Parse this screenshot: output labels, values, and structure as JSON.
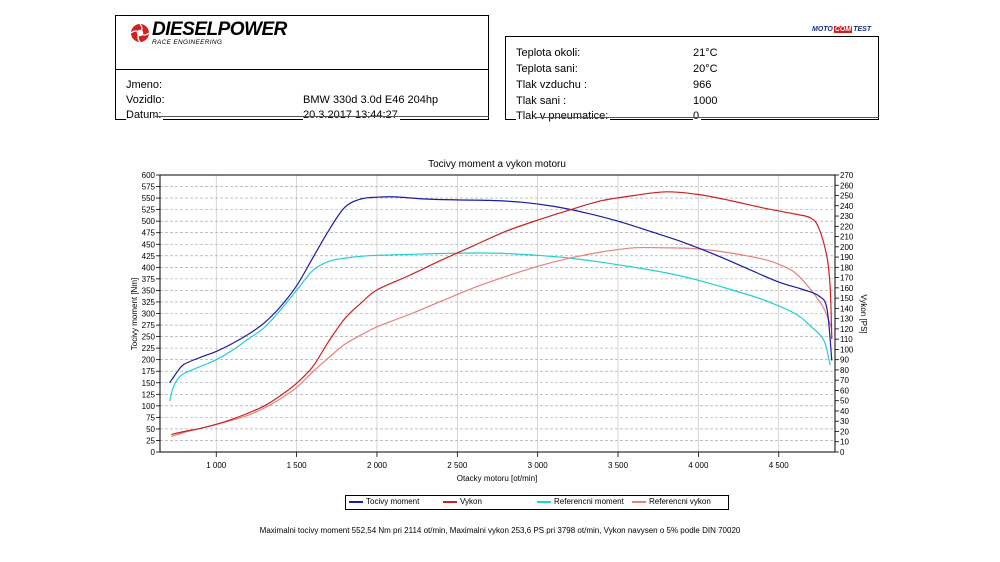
{
  "header": {
    "brand": "DIESELPOWER",
    "brand_sub": "RACE ENGINEERING",
    "moto_badge": [
      "MOTO",
      "COM",
      "TEST"
    ],
    "info": [
      {
        "label": "Jmeno:",
        "value": ""
      },
      {
        "label": "Vozidlo:",
        "value": "BMW 330d 3.0d E46 204hp"
      },
      {
        "label": "Datum:",
        "value": "20.3.2017 13:44:27"
      }
    ],
    "conditions": [
      {
        "label": "Teplota okoli:",
        "value": "21°C"
      },
      {
        "label": "Teplota sani:",
        "value": "20°C"
      },
      {
        "label": "Tlak vzduchu :",
        "value": "966"
      },
      {
        "label": "Tlak sani :",
        "value": "1000"
      },
      {
        "label": "Tlak v pneumatice:",
        "value": "0"
      }
    ]
  },
  "chart_data": {
    "type": "line",
    "title": "Tocivy moment a vykon motoru",
    "xlabel": "Otacky motoru [ot/min]",
    "ylabel_left": "Tocivy moment [Nm]",
    "ylabel_right": "Vykon [PS]",
    "xlim": [
      650,
      4850
    ],
    "ylim_left": [
      0,
      600
    ],
    "ylim_right": [
      0,
      270
    ],
    "x_ticks": [
      1000,
      1500,
      2000,
      2500,
      3000,
      3500,
      4000,
      4500
    ],
    "x_tick_labels": [
      "1 000",
      "1 500",
      "2 000",
      "2 500",
      "3 000",
      "3 500",
      "4 000",
      "4 500"
    ],
    "y_left_ticks": [
      0,
      25,
      50,
      75,
      100,
      125,
      150,
      175,
      200,
      225,
      250,
      275,
      300,
      325,
      350,
      375,
      400,
      425,
      450,
      475,
      500,
      525,
      550,
      575,
      600
    ],
    "y_right_ticks": [
      0,
      10,
      20,
      30,
      40,
      50,
      60,
      70,
      80,
      90,
      100,
      110,
      120,
      130,
      140,
      150,
      160,
      170,
      180,
      190,
      200,
      210,
      220,
      230,
      240,
      250,
      260,
      270
    ],
    "grid": true,
    "legend_position": "bottom",
    "series": [
      {
        "name": "Tocivy moment",
        "axis": "left",
        "color": "#1a1aa8",
        "x": [
          710,
          730,
          760,
          800,
          900,
          1000,
          1100,
          1200,
          1300,
          1400,
          1500,
          1600,
          1700,
          1800,
          1900,
          2000,
          2114,
          2300,
          2500,
          2700,
          2900,
          3100,
          3300,
          3500,
          3700,
          3900,
          4100,
          4300,
          4500,
          4650,
          4750,
          4800,
          4830
        ],
        "y": [
          150,
          160,
          175,
          190,
          205,
          218,
          235,
          255,
          280,
          315,
          360,
          420,
          480,
          530,
          548,
          552,
          552.5,
          548,
          546,
          545,
          541,
          532,
          518,
          500,
          478,
          455,
          428,
          398,
          368,
          352,
          338,
          310,
          198
        ]
      },
      {
        "name": "Vykon",
        "axis": "right",
        "color": "#cc2020",
        "x": [
          720,
          800,
          900,
          1000,
          1100,
          1200,
          1300,
          1400,
          1500,
          1600,
          1700,
          1800,
          1900,
          2000,
          2200,
          2400,
          2600,
          2800,
          3000,
          3200,
          3400,
          3600,
          3798,
          4000,
          4200,
          4400,
          4600,
          4700,
          4750,
          4800,
          4820,
          4830
        ],
        "y": [
          17,
          20,
          23,
          27,
          32,
          38,
          45,
          55,
          67,
          83,
          108,
          130,
          145,
          158,
          172,
          187,
          201,
          215,
          226,
          236,
          245,
          250,
          253.6,
          251,
          245,
          238,
          232,
          228,
          218,
          190,
          160,
          110
        ]
      },
      {
        "name": "Referencni moment",
        "axis": "left",
        "color": "#22d0d0",
        "x": [
          710,
          730,
          760,
          800,
          900,
          1000,
          1100,
          1200,
          1300,
          1400,
          1500,
          1600,
          1700,
          1800,
          1900,
          2000,
          2200,
          2400,
          2600,
          2800,
          3000,
          3200,
          3400,
          3600,
          3800,
          4000,
          4200,
          4400,
          4600,
          4700,
          4780,
          4820
        ],
        "y": [
          110,
          138,
          158,
          170,
          185,
          200,
          220,
          245,
          270,
          308,
          350,
          393,
          413,
          420,
          424,
          426,
          428,
          430,
          431,
          430,
          426,
          420,
          411,
          400,
          388,
          372,
          352,
          330,
          300,
          272,
          242,
          188
        ]
      },
      {
        "name": "Referencni vykon",
        "axis": "right",
        "color": "#e88080",
        "x": [
          720,
          800,
          900,
          1000,
          1100,
          1200,
          1300,
          1400,
          1500,
          1600,
          1700,
          1800,
          1900,
          2000,
          2200,
          2400,
          2600,
          2800,
          3000,
          3200,
          3400,
          3600,
          3800,
          4000,
          4200,
          4400,
          4500,
          4600,
          4700,
          4780,
          4830
        ],
        "y": [
          15,
          19,
          23,
          27,
          31,
          36,
          43,
          52,
          63,
          78,
          92,
          105,
          114,
          122,
          134,
          147,
          160,
          171,
          181,
          189,
          195,
          199,
          199,
          198,
          194,
          188,
          183,
          175,
          158,
          140,
          120
        ]
      }
    ]
  },
  "footer": {
    "summary": "Maximalni tocivy moment 552,54 Nm pri 2114 ot/min,  Maximalni vykon 253,6 PS pri 3798 ot/min,  Vykon navysen o 5% podle DIN 70020"
  }
}
